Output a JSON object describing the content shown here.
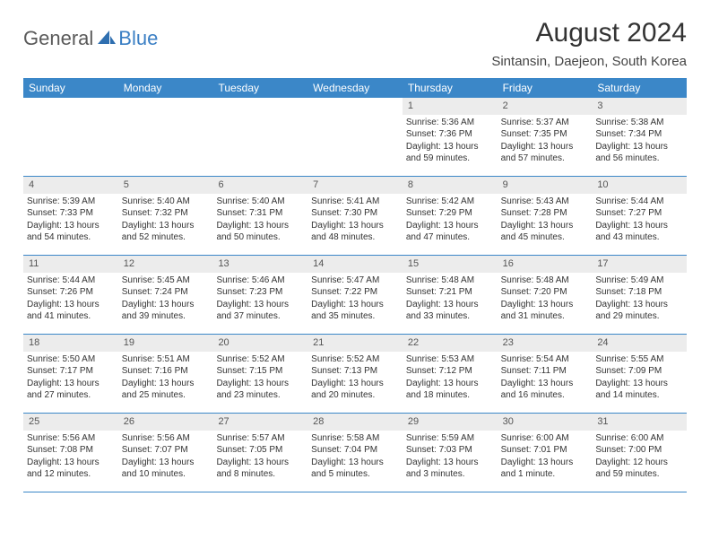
{
  "brand": {
    "general": "General",
    "blue": "Blue"
  },
  "title": "August 2024",
  "location": "Sintansin, Daejeon, South Korea",
  "colors": {
    "header_bg": "#3b87c8",
    "daynum_bg": "#ececec",
    "border": "#3b87c8",
    "logo_gray": "#5a5a5a",
    "logo_blue": "#3b7fc4"
  },
  "weekdays": [
    "Sunday",
    "Monday",
    "Tuesday",
    "Wednesday",
    "Thursday",
    "Friday",
    "Saturday"
  ],
  "weeks": [
    [
      {
        "empty": true
      },
      {
        "empty": true
      },
      {
        "empty": true
      },
      {
        "empty": true
      },
      {
        "num": "1",
        "sunrise": "Sunrise: 5:36 AM",
        "sunset": "Sunset: 7:36 PM",
        "day1": "Daylight: 13 hours",
        "day2": "and 59 minutes."
      },
      {
        "num": "2",
        "sunrise": "Sunrise: 5:37 AM",
        "sunset": "Sunset: 7:35 PM",
        "day1": "Daylight: 13 hours",
        "day2": "and 57 minutes."
      },
      {
        "num": "3",
        "sunrise": "Sunrise: 5:38 AM",
        "sunset": "Sunset: 7:34 PM",
        "day1": "Daylight: 13 hours",
        "day2": "and 56 minutes."
      }
    ],
    [
      {
        "num": "4",
        "sunrise": "Sunrise: 5:39 AM",
        "sunset": "Sunset: 7:33 PM",
        "day1": "Daylight: 13 hours",
        "day2": "and 54 minutes."
      },
      {
        "num": "5",
        "sunrise": "Sunrise: 5:40 AM",
        "sunset": "Sunset: 7:32 PM",
        "day1": "Daylight: 13 hours",
        "day2": "and 52 minutes."
      },
      {
        "num": "6",
        "sunrise": "Sunrise: 5:40 AM",
        "sunset": "Sunset: 7:31 PM",
        "day1": "Daylight: 13 hours",
        "day2": "and 50 minutes."
      },
      {
        "num": "7",
        "sunrise": "Sunrise: 5:41 AM",
        "sunset": "Sunset: 7:30 PM",
        "day1": "Daylight: 13 hours",
        "day2": "and 48 minutes."
      },
      {
        "num": "8",
        "sunrise": "Sunrise: 5:42 AM",
        "sunset": "Sunset: 7:29 PM",
        "day1": "Daylight: 13 hours",
        "day2": "and 47 minutes."
      },
      {
        "num": "9",
        "sunrise": "Sunrise: 5:43 AM",
        "sunset": "Sunset: 7:28 PM",
        "day1": "Daylight: 13 hours",
        "day2": "and 45 minutes."
      },
      {
        "num": "10",
        "sunrise": "Sunrise: 5:44 AM",
        "sunset": "Sunset: 7:27 PM",
        "day1": "Daylight: 13 hours",
        "day2": "and 43 minutes."
      }
    ],
    [
      {
        "num": "11",
        "sunrise": "Sunrise: 5:44 AM",
        "sunset": "Sunset: 7:26 PM",
        "day1": "Daylight: 13 hours",
        "day2": "and 41 minutes."
      },
      {
        "num": "12",
        "sunrise": "Sunrise: 5:45 AM",
        "sunset": "Sunset: 7:24 PM",
        "day1": "Daylight: 13 hours",
        "day2": "and 39 minutes."
      },
      {
        "num": "13",
        "sunrise": "Sunrise: 5:46 AM",
        "sunset": "Sunset: 7:23 PM",
        "day1": "Daylight: 13 hours",
        "day2": "and 37 minutes."
      },
      {
        "num": "14",
        "sunrise": "Sunrise: 5:47 AM",
        "sunset": "Sunset: 7:22 PM",
        "day1": "Daylight: 13 hours",
        "day2": "and 35 minutes."
      },
      {
        "num": "15",
        "sunrise": "Sunrise: 5:48 AM",
        "sunset": "Sunset: 7:21 PM",
        "day1": "Daylight: 13 hours",
        "day2": "and 33 minutes."
      },
      {
        "num": "16",
        "sunrise": "Sunrise: 5:48 AM",
        "sunset": "Sunset: 7:20 PM",
        "day1": "Daylight: 13 hours",
        "day2": "and 31 minutes."
      },
      {
        "num": "17",
        "sunrise": "Sunrise: 5:49 AM",
        "sunset": "Sunset: 7:18 PM",
        "day1": "Daylight: 13 hours",
        "day2": "and 29 minutes."
      }
    ],
    [
      {
        "num": "18",
        "sunrise": "Sunrise: 5:50 AM",
        "sunset": "Sunset: 7:17 PM",
        "day1": "Daylight: 13 hours",
        "day2": "and 27 minutes."
      },
      {
        "num": "19",
        "sunrise": "Sunrise: 5:51 AM",
        "sunset": "Sunset: 7:16 PM",
        "day1": "Daylight: 13 hours",
        "day2": "and 25 minutes."
      },
      {
        "num": "20",
        "sunrise": "Sunrise: 5:52 AM",
        "sunset": "Sunset: 7:15 PM",
        "day1": "Daylight: 13 hours",
        "day2": "and 23 minutes."
      },
      {
        "num": "21",
        "sunrise": "Sunrise: 5:52 AM",
        "sunset": "Sunset: 7:13 PM",
        "day1": "Daylight: 13 hours",
        "day2": "and 20 minutes."
      },
      {
        "num": "22",
        "sunrise": "Sunrise: 5:53 AM",
        "sunset": "Sunset: 7:12 PM",
        "day1": "Daylight: 13 hours",
        "day2": "and 18 minutes."
      },
      {
        "num": "23",
        "sunrise": "Sunrise: 5:54 AM",
        "sunset": "Sunset: 7:11 PM",
        "day1": "Daylight: 13 hours",
        "day2": "and 16 minutes."
      },
      {
        "num": "24",
        "sunrise": "Sunrise: 5:55 AM",
        "sunset": "Sunset: 7:09 PM",
        "day1": "Daylight: 13 hours",
        "day2": "and 14 minutes."
      }
    ],
    [
      {
        "num": "25",
        "sunrise": "Sunrise: 5:56 AM",
        "sunset": "Sunset: 7:08 PM",
        "day1": "Daylight: 13 hours",
        "day2": "and 12 minutes."
      },
      {
        "num": "26",
        "sunrise": "Sunrise: 5:56 AM",
        "sunset": "Sunset: 7:07 PM",
        "day1": "Daylight: 13 hours",
        "day2": "and 10 minutes."
      },
      {
        "num": "27",
        "sunrise": "Sunrise: 5:57 AM",
        "sunset": "Sunset: 7:05 PM",
        "day1": "Daylight: 13 hours",
        "day2": "and 8 minutes."
      },
      {
        "num": "28",
        "sunrise": "Sunrise: 5:58 AM",
        "sunset": "Sunset: 7:04 PM",
        "day1": "Daylight: 13 hours",
        "day2": "and 5 minutes."
      },
      {
        "num": "29",
        "sunrise": "Sunrise: 5:59 AM",
        "sunset": "Sunset: 7:03 PM",
        "day1": "Daylight: 13 hours",
        "day2": "and 3 minutes."
      },
      {
        "num": "30",
        "sunrise": "Sunrise: 6:00 AM",
        "sunset": "Sunset: 7:01 PM",
        "day1": "Daylight: 13 hours",
        "day2": "and 1 minute."
      },
      {
        "num": "31",
        "sunrise": "Sunrise: 6:00 AM",
        "sunset": "Sunset: 7:00 PM",
        "day1": "Daylight: 12 hours",
        "day2": "and 59 minutes."
      }
    ]
  ]
}
